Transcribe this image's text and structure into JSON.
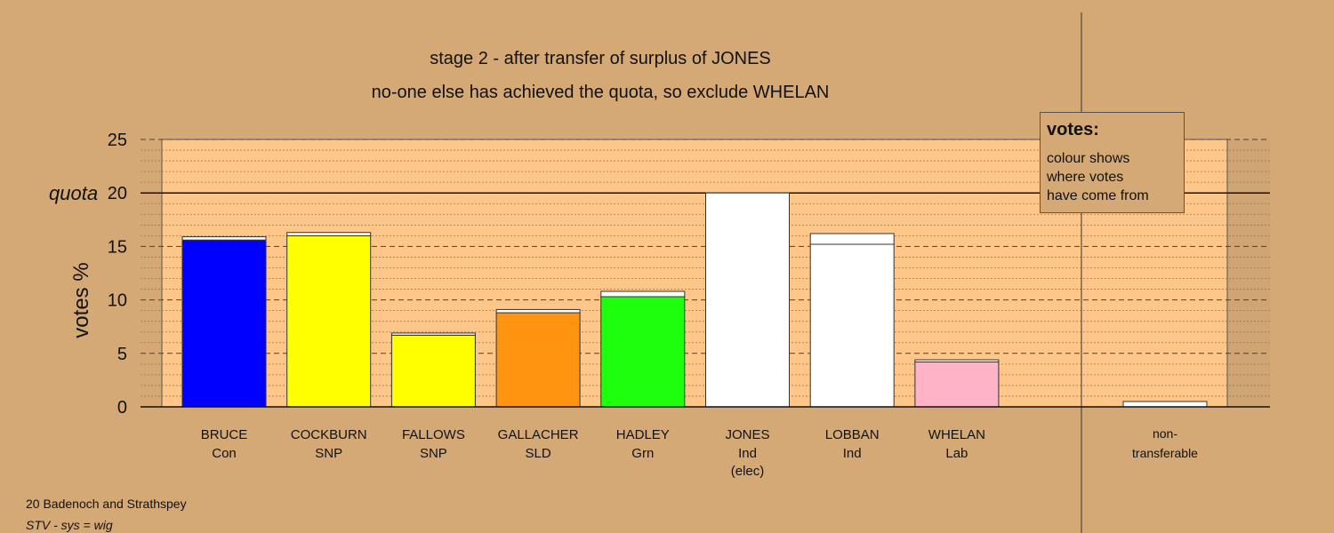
{
  "chart_data": {
    "type": "bar",
    "title": "stage 2 - after transfer of surplus of JONES",
    "subtitle": "no-one else has achieved the quota, so exclude WHELAN",
    "ylabel": "votes %",
    "quota_label": "quota",
    "quota_value": 20,
    "ylim": [
      0,
      25
    ],
    "yticks": [
      0,
      5,
      10,
      15,
      20,
      25
    ],
    "grid": true,
    "legend_placement": "top-right",
    "categories": [
      {
        "name": "BRUCE",
        "party": "Con",
        "note": ""
      },
      {
        "name": "COCKBURN",
        "party": "SNP",
        "note": ""
      },
      {
        "name": "FALLOWS",
        "party": "SNP",
        "note": ""
      },
      {
        "name": "GALLACHER",
        "party": "SLD",
        "note": ""
      },
      {
        "name": "HADLEY",
        "party": "Grn",
        "note": ""
      },
      {
        "name": "JONES",
        "party": "Ind",
        "note": "(elec)"
      },
      {
        "name": "LOBBAN",
        "party": "Ind",
        "note": ""
      },
      {
        "name": "WHELAN",
        "party": "Lab",
        "note": ""
      }
    ],
    "nontransferable_label": [
      "non-",
      "transferable"
    ],
    "bars": [
      {
        "segments": [
          {
            "value": 15.6,
            "color": "#0000ff"
          },
          {
            "value": 0.3,
            "color": "#ffffff"
          }
        ]
      },
      {
        "segments": [
          {
            "value": 16.0,
            "color": "#ffff00"
          },
          {
            "value": 0.3,
            "color": "#ffffff"
          }
        ]
      },
      {
        "segments": [
          {
            "value": 6.7,
            "color": "#ffff00"
          },
          {
            "value": 0.2,
            "color": "#ffffff"
          }
        ]
      },
      {
        "segments": [
          {
            "value": 8.8,
            "color": "#ff9410"
          },
          {
            "value": 0.3,
            "color": "#ffffff"
          }
        ]
      },
      {
        "segments": [
          {
            "value": 10.3,
            "color": "#1eff0e"
          },
          {
            "value": 0.5,
            "color": "#ffffff"
          }
        ]
      },
      {
        "segments": [
          {
            "value": 20.0,
            "color": "#ffffff"
          }
        ]
      },
      {
        "segments": [
          {
            "value": 15.2,
            "color": "#ffffff"
          },
          {
            "value": 1.0,
            "color": "#ffffff"
          }
        ]
      },
      {
        "segments": [
          {
            "value": 4.2,
            "color": "#ffb3c6"
          },
          {
            "value": 0.2,
            "color": "#ffffff"
          }
        ]
      }
    ],
    "nontransferable": {
      "segments": [
        {
          "value": 0.5,
          "color": "#ffffff"
        }
      ]
    },
    "colors": {
      "background": "#d4a976",
      "plot_area": "#ffc68a"
    }
  },
  "legend": {
    "title": "votes:",
    "lines": [
      "colour shows",
      "where votes",
      "have come from"
    ]
  },
  "footer": {
    "constituency": "20 Badenoch and Strathspey",
    "system": "STV - sys = wig"
  }
}
